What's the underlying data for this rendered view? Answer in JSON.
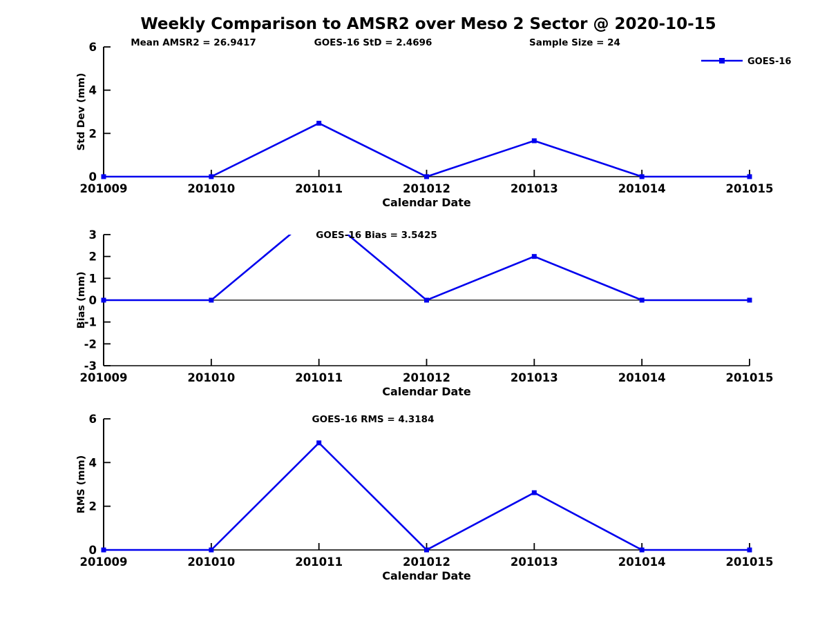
{
  "page": {
    "title": "Weekly Comparison to AMSR2 over Meso 2 Sector @ 2020-10-15",
    "background": "#ffffff"
  },
  "colors": {
    "line": "#0000ee",
    "axis": "#000000",
    "text": "#000000"
  },
  "legend": {
    "label": "GOES-16"
  },
  "chart_data": [
    {
      "type": "line",
      "subplot": "std-dev",
      "categories": [
        "201009",
        "201010",
        "201011",
        "201012",
        "201013",
        "201014",
        "201015"
      ],
      "series": [
        {
          "name": "GOES-16",
          "values": [
            0,
            0,
            2.47,
            0,
            1.66,
            0,
            0
          ]
        }
      ],
      "xlabel": "Calendar Date",
      "ylabel": "Std Dev (mm)",
      "ylim": [
        0,
        6
      ],
      "yticks": [
        0,
        2,
        4,
        6
      ],
      "grid": false,
      "legend_position": "top-right",
      "show_legend": true,
      "annotations": [
        {
          "text": "Mean AMSR2 = 26.9417"
        },
        {
          "text": "GOES-16 StD = 2.4696"
        },
        {
          "text": "Sample Size = 24"
        }
      ]
    },
    {
      "type": "line",
      "subplot": "bias",
      "categories": [
        "201009",
        "201010",
        "201011",
        "201012",
        "201013",
        "201014",
        "201015"
      ],
      "series": [
        {
          "name": "GOES-16",
          "values": [
            0,
            0,
            4.1,
            0,
            2.0,
            0,
            0
          ]
        }
      ],
      "note": "peak at 201011 exceeds ylim and is clipped at top; zero axis line drawn",
      "xlabel": "Calendar Date",
      "ylabel": "Bias (mm)",
      "ylim": [
        -3,
        3
      ],
      "yticks": [
        -3,
        -2,
        -1,
        0,
        1,
        2,
        3
      ],
      "grid": false,
      "show_legend": false,
      "annotations": [
        {
          "text": "GOES-16 Bias  = 3.5425"
        }
      ]
    },
    {
      "type": "line",
      "subplot": "rms",
      "categories": [
        "201009",
        "201010",
        "201011",
        "201012",
        "201013",
        "201014",
        "201015"
      ],
      "series": [
        {
          "name": "GOES-16",
          "values": [
            0,
            0,
            4.9,
            0,
            2.62,
            0,
            0
          ]
        }
      ],
      "xlabel": "Calendar Date",
      "ylabel": "RMS (mm)",
      "ylim": [
        0,
        6
      ],
      "yticks": [
        0,
        2,
        4,
        6
      ],
      "grid": false,
      "show_legend": false,
      "annotations": [
        {
          "text": "GOES-16 RMS = 4.3184"
        }
      ]
    }
  ]
}
